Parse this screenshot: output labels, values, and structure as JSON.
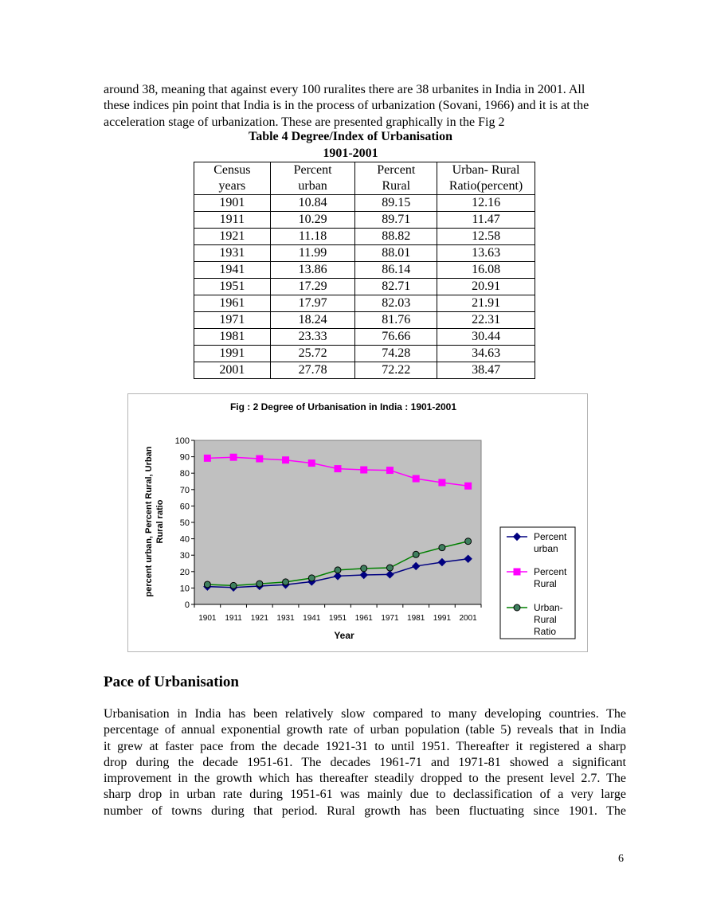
{
  "intro_lines": [
    "around 38, meaning that against every 100 ruralites there are 38 urbanites in India in 2001.  All",
    "these indices pin point that India is in the process of urbanization (Sovani, 1966) and it is at the",
    "acceleration stage of urbanization.  These are presented graphically in the Fig  2"
  ],
  "table": {
    "title": "Table 4  Degree/Index of Urbanisation",
    "subtitle": "1901-2001",
    "headers": [
      [
        "Census",
        "years"
      ],
      [
        "Percent",
        "urban"
      ],
      [
        "Percent",
        "Rural"
      ],
      [
        "Urban- Rural",
        "Ratio(percent)"
      ]
    ],
    "rows": [
      [
        "1901",
        "10.84",
        "89.15",
        "12.16"
      ],
      [
        "1911",
        "10.29",
        "89.71",
        "11.47"
      ],
      [
        "1921",
        "11.18",
        "88.82",
        "12.58"
      ],
      [
        "1931",
        "11.99",
        "88.01",
        "13.63"
      ],
      [
        "1941",
        "13.86",
        "86.14",
        "16.08"
      ],
      [
        "1951",
        "17.29",
        "82.71",
        "20.91"
      ],
      [
        "1961",
        "17.97",
        "82.03",
        "21.91"
      ],
      [
        "1971",
        "18.24",
        "81.76",
        "22.31"
      ],
      [
        "1981",
        "23.33",
        "76.66",
        "30.44"
      ],
      [
        "1991",
        "25.72",
        "74.28",
        "34.63"
      ],
      [
        "2001",
        "27.78",
        "72.22",
        "38.47"
      ]
    ]
  },
  "chart_data": {
    "type": "line",
    "title": "Fig : 2  Degree of Urbanisation in India : 1901-2001",
    "xlabel": "Year",
    "ylabel_lines": [
      "percent urban, Percent Rural, Urban",
      "Rural ratio"
    ],
    "categories": [
      "1901",
      "1911",
      "1921",
      "1931",
      "1941",
      "1951",
      "1961",
      "1971",
      "1981",
      "1991",
      "2001"
    ],
    "ylim": [
      0,
      100
    ],
    "yticks": [
      0,
      10,
      20,
      30,
      40,
      50,
      60,
      70,
      80,
      90,
      100
    ],
    "grid": false,
    "legend_position": "right",
    "series": [
      {
        "name_lines": [
          "Percent",
          "urban"
        ],
        "color": "#000080",
        "marker": "diamond",
        "values": [
          10.84,
          10.29,
          11.18,
          11.99,
          13.86,
          17.29,
          17.97,
          18.24,
          23.33,
          25.72,
          27.78
        ]
      },
      {
        "name_lines": [
          "Percent",
          "Rural"
        ],
        "color": "#ff00ff",
        "marker": "square",
        "values": [
          89.15,
          89.71,
          88.82,
          88.01,
          86.14,
          82.71,
          82.03,
          81.76,
          76.66,
          74.28,
          72.22
        ]
      },
      {
        "name_lines": [
          "Urban-",
          "Rural",
          "Ratio"
        ],
        "color": "#008000",
        "marker_fill": "#3f7f5f",
        "marker": "circle",
        "values": [
          12.16,
          11.47,
          12.58,
          13.63,
          16.08,
          20.91,
          21.91,
          22.31,
          30.44,
          34.63,
          38.47
        ]
      }
    ]
  },
  "section_heading": "Pace of Urbanisation",
  "body_lines": [
    "Urbanisation in India has been relatively slow compared to many developing countries. The",
    "percentage of annual exponential growth rate of urban population (table 5) reveals that in India",
    "it grew at faster pace from the decade 1921-31 to until 1951. Thereafter it registered a sharp",
    "drop during the decade 1951-61. The decades 1961-71 and 1971-81 showed a significant",
    "improvement in the growth which has thereafter steadily dropped to the present level  2.7. The",
    "sharp drop in urban rate during 1951-61 was mainly due to declassification of a very large",
    "number of towns during that period. Rural growth has been fluctuating  since 1901. The"
  ],
  "page_number": "6"
}
